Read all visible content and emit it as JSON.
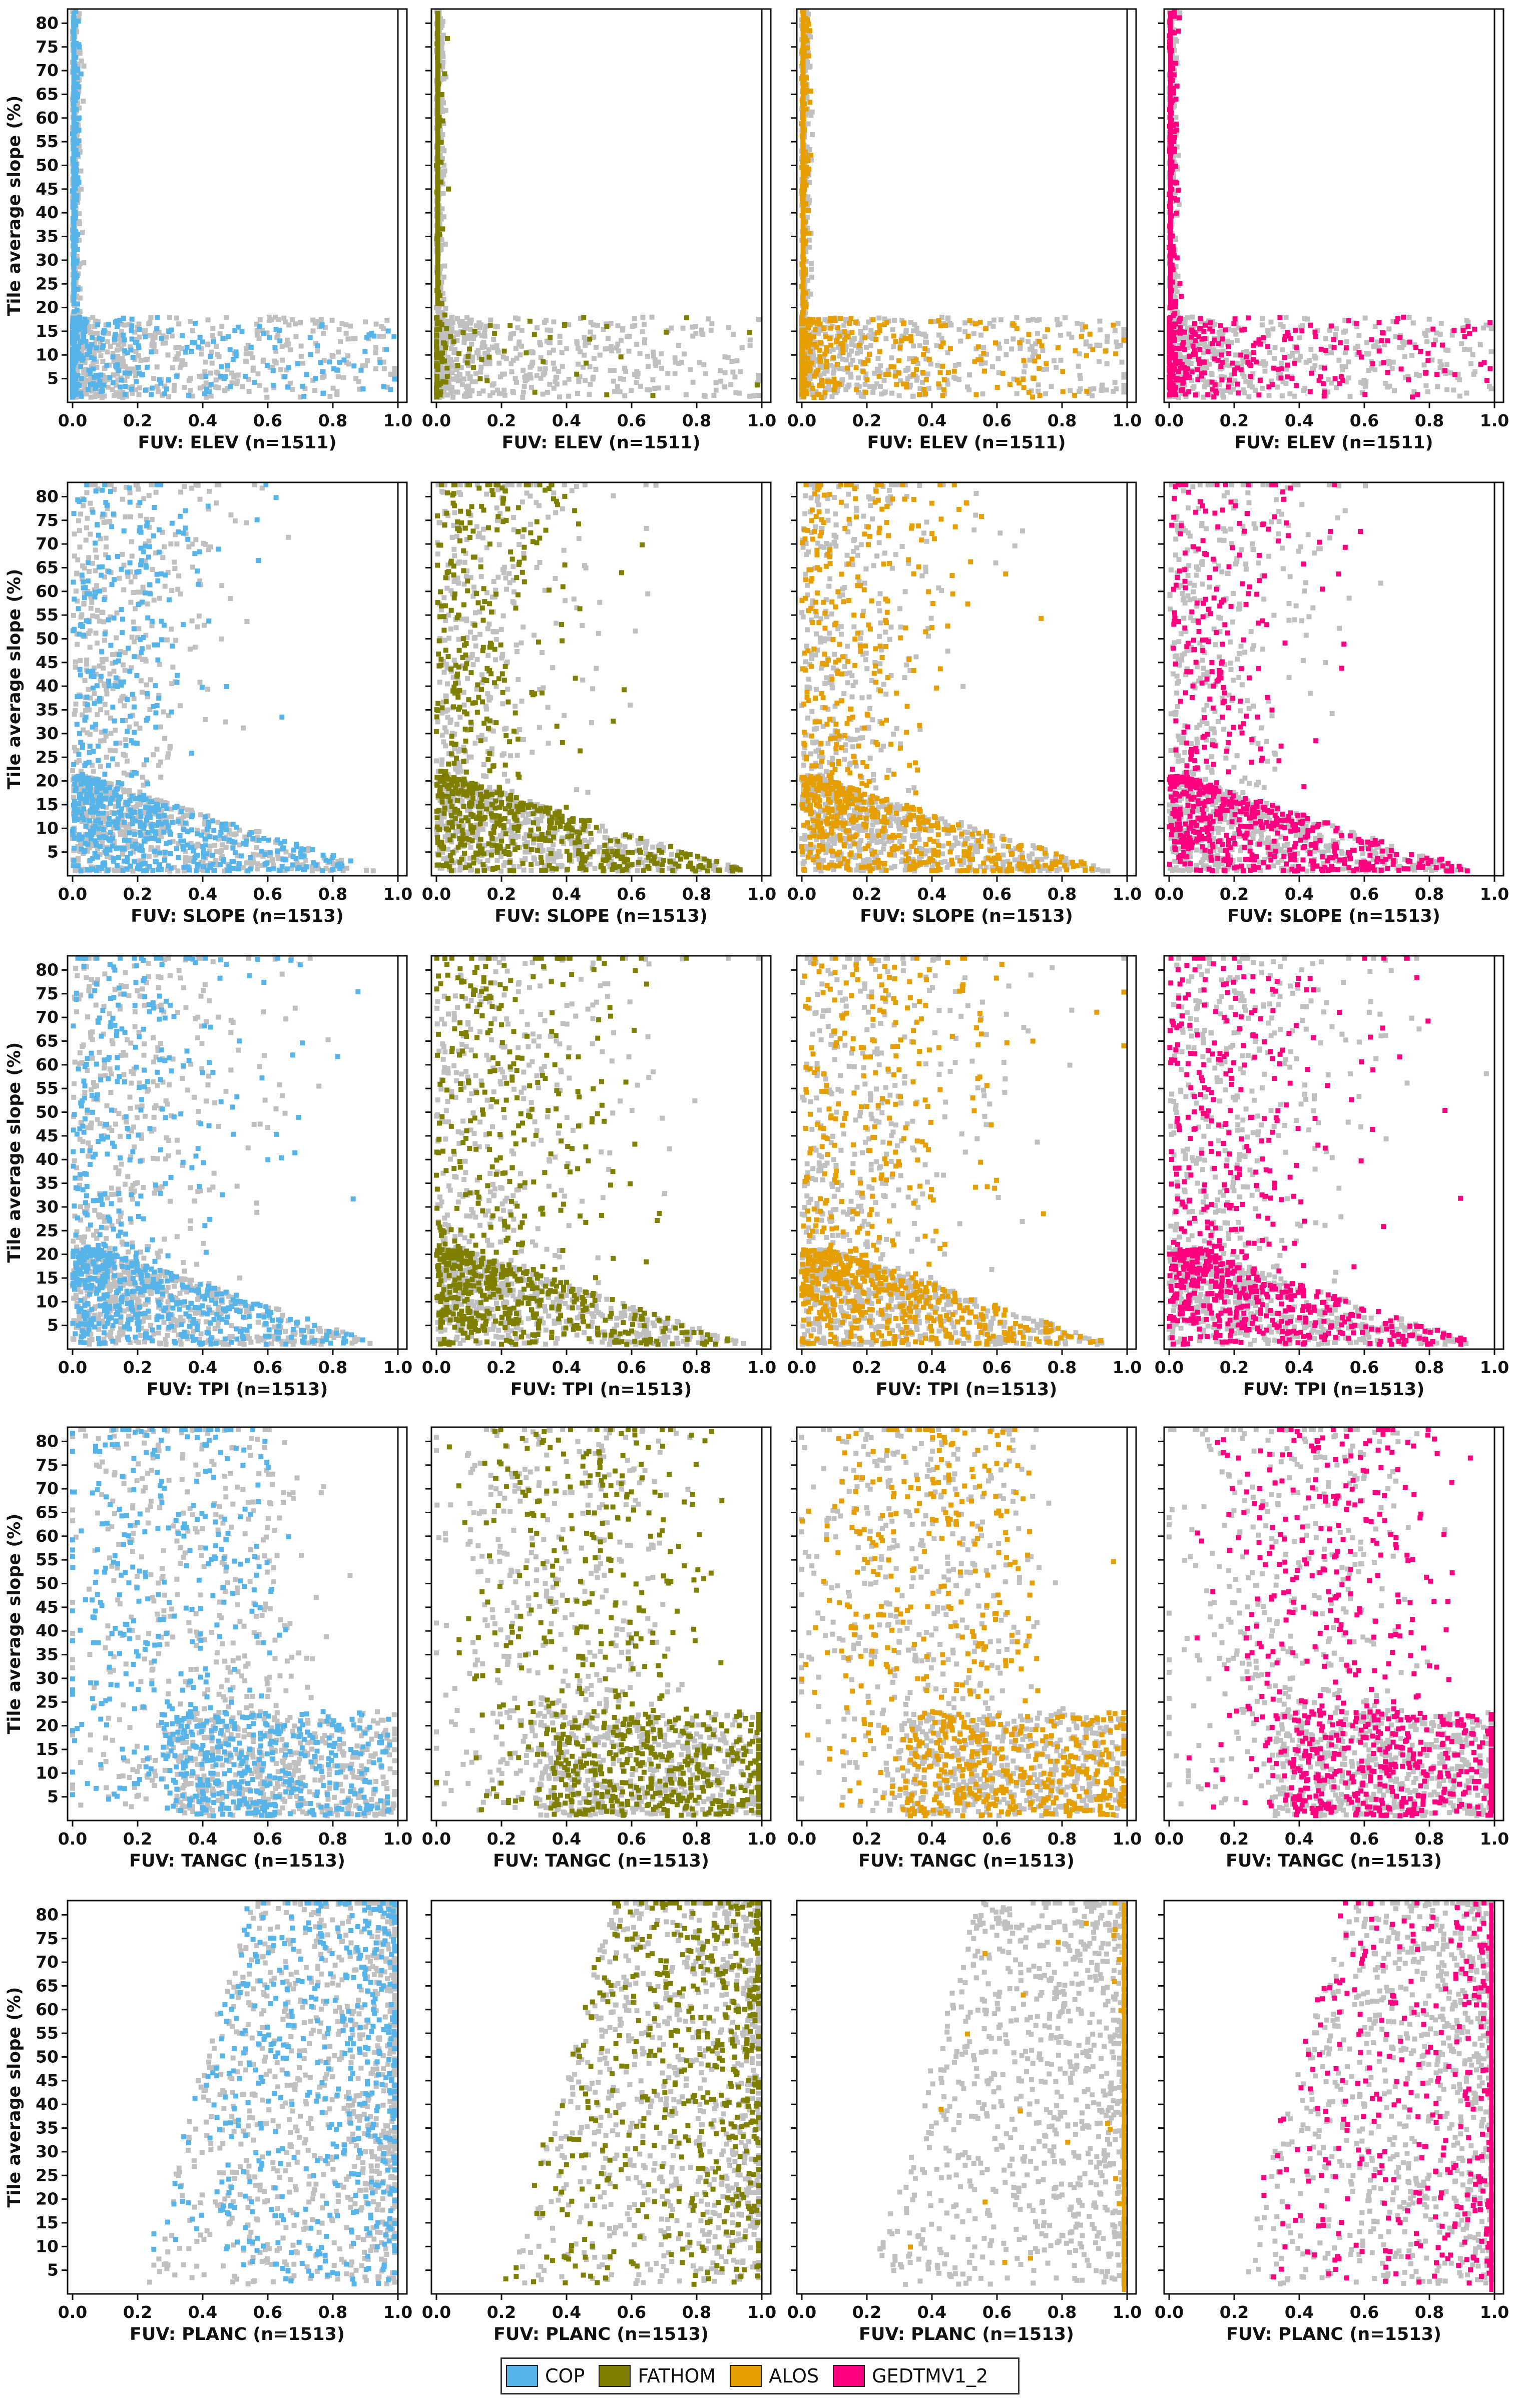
{
  "figure": {
    "y_axis_label": "Tile average slope (%)",
    "background_series_color": "#c0c0c0"
  },
  "legend": [
    {
      "name": "COP",
      "color": "#56b4e9"
    },
    {
      "name": "FATHOM",
      "color": "#808000"
    },
    {
      "name": "ALOS",
      "color": "#e69f00"
    },
    {
      "name": "GEDTMV1_2",
      "color": "#ff0080"
    }
  ],
  "chart_data": {
    "type": "scatter",
    "layout": "grid of 5 rows x 4 columns, one panel per (parameter, DEM)",
    "x_ticks": [
      "0.0",
      "0.2",
      "0.4",
      "0.6",
      "0.8",
      "1.0"
    ],
    "y_ticks": [
      "5",
      "10",
      "15",
      "20",
      "25",
      "30",
      "35",
      "40",
      "45",
      "50",
      "55",
      "60",
      "65",
      "70",
      "75",
      "80"
    ],
    "xlim": [
      0,
      1.0
    ],
    "ylim": [
      0,
      83
    ],
    "ylabel": "Tile average slope (%)",
    "columns": [
      "COP",
      "FATHOM",
      "ALOS",
      "GEDTMV1_2"
    ],
    "rows": [
      {
        "xlabel": "FUV: ELEV  (n=1511)",
        "profile": "elev"
      },
      {
        "xlabel": "FUV: SLOPE  (n=1513)",
        "profile": "slope"
      },
      {
        "xlabel": "FUV: TPI  (n=1513)",
        "profile": "tpi"
      },
      {
        "xlabel": "FUV: TANGC  (n=1513)",
        "profile": "tangc"
      },
      {
        "xlabel": "FUV: PLANC  (n=1513)",
        "profile": "planc"
      }
    ]
  }
}
